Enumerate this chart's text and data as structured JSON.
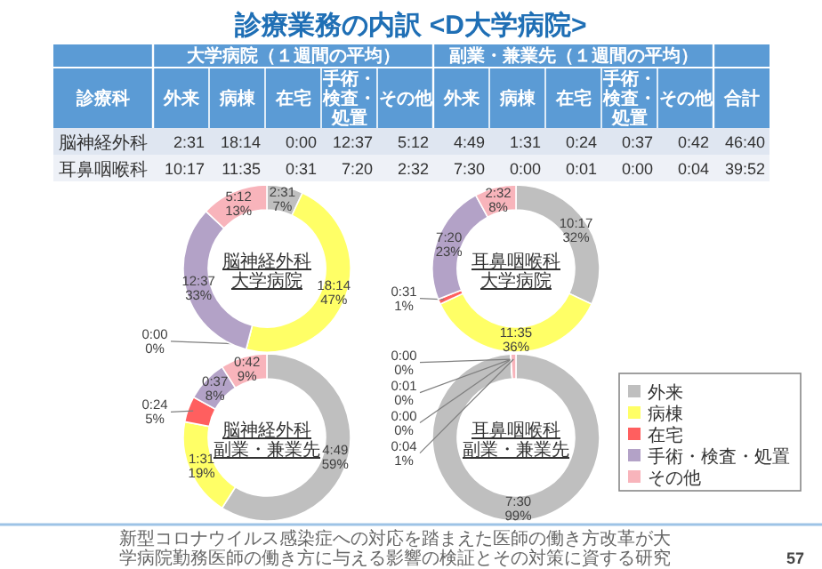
{
  "chart_data": [
    {
      "type": "other",
      "title": "診療業務の内訳 <D大学病院>",
      "categories": [
        "外来",
        "病棟",
        "在宅",
        "手術・検査・処置",
        "その他",
        "外来",
        "病棟",
        "在宅",
        "手術・検査・処置",
        "その他",
        "合計"
      ],
      "y_categories": [
        "脳神経外科",
        "耳鼻咽喉科"
      ],
      "cell_labels": [
        [
          "2:31",
          "18:14",
          "0:00",
          "12:37",
          "5:12",
          "4:49",
          "1:31",
          "0:24",
          "0:37",
          "0:42",
          "46:40"
        ],
        [
          "10:17",
          "11:35",
          "0:31",
          "7:20",
          "2:32",
          "7:30",
          "0:00",
          "0:01",
          "0:00",
          "0:04",
          "39:52"
        ]
      ],
      "annotations": [
        "診療科",
        "大学病院（１週間の平均）",
        "副業・兼業先（１週間の平均）",
        "新型コロナウイルス感染症への対応を踏まえた医師の働き方改革が大学病院勤務医師の働き方に与える影響の検証とその対策に資する研究",
        "57"
      ]
    },
    {
      "type": "donut",
      "title": "脳神経外科",
      "subtitle": "大学病院",
      "categories": [
        null,
        null,
        null,
        null,
        null
      ],
      "values": [
        7,
        47,
        0,
        33,
        13
      ],
      "colors": [
        "#bfbfbf",
        "#ffff66",
        "#ff5f5f",
        "#b3a2c7",
        "#f8b4bb"
      ],
      "value_labels": [
        "2:31 7%",
        "18:14 47%",
        "0:00 0%",
        "12:37 33%",
        "5:12 13%"
      ]
    },
    {
      "type": "donut",
      "title": "耳鼻咽喉科",
      "subtitle": "大学病院",
      "categories": [
        null,
        null,
        null,
        null,
        null
      ],
      "values": [
        32,
        36,
        1,
        23,
        8
      ],
      "colors": [
        "#bfbfbf",
        "#ffff66",
        "#ff5f5f",
        "#b3a2c7",
        "#f8b4bb"
      ],
      "value_labels": [
        "10:17 32%",
        "11:35 36%",
        "0:31 1%",
        "7:20 23%",
        "2:32 8%"
      ]
    },
    {
      "type": "donut",
      "title": "脳神経外科",
      "subtitle": "副業・兼業先",
      "categories": [
        null,
        null,
        null,
        null,
        null
      ],
      "values": [
        59,
        19,
        5,
        8,
        9
      ],
      "colors": [
        "#bfbfbf",
        "#ffff66",
        "#ff5f5f",
        "#b3a2c7",
        "#f8b4bb"
      ],
      "value_labels": [
        "4:49 59%",
        "1:31 19%",
        "0:24 5%",
        "0:37 8%",
        "0:42 9%"
      ]
    },
    {
      "type": "donut",
      "title": "耳鼻咽喉科",
      "subtitle": "副業・兼業先",
      "categories": [
        "外来",
        "病棟",
        "在宅",
        "手術・検査・処置",
        "その他"
      ],
      "values": [
        99,
        0,
        0,
        0,
        1
      ],
      "colors": [
        "#bfbfbf",
        "#ffff66",
        "#ff5f5f",
        "#b3a2c7",
        "#f8b4bb"
      ],
      "value_labels": [
        "7:30 99%",
        "0:00 0%",
        "0:01 0%",
        "0:00 0%",
        "0:04 1%"
      ],
      "legend": "right"
    }
  ]
}
